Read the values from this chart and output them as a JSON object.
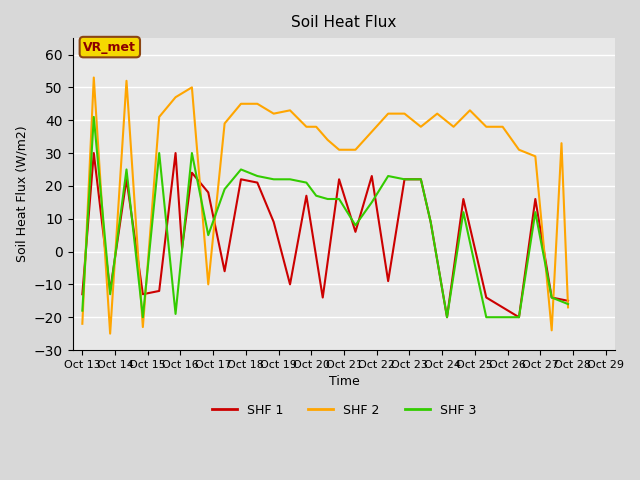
{
  "title": "Soil Heat Flux",
  "xlabel": "Time",
  "ylabel": "Soil Heat Flux (W/m2)",
  "ylim": [
    -30,
    65
  ],
  "yticks": [
    -30,
    -20,
    -10,
    0,
    10,
    20,
    30,
    40,
    50,
    60
  ],
  "fig_bg_color": "#d8d8d8",
  "plot_bg_color": "#e8e8e8",
  "annotation_text": "VR_met",
  "annotation_color": "#8B0000",
  "annotation_bg": "#f5d800",
  "annotation_edge": "#8B4513",
  "line_colors": {
    "SHF 1": "#cc0000",
    "SHF 2": "#ffa500",
    "SHF 3": "#33cc00"
  },
  "xtick_positions": [
    0,
    1,
    2,
    3,
    4,
    5,
    6,
    7,
    8,
    9,
    10,
    11,
    12,
    13,
    14,
    15,
    16
  ],
  "xtick_labels": [
    "Oct 13",
    "Oct 14",
    "Oct 15",
    "Oct 16",
    "Oct 17",
    "Oct 18",
    "Oct 19",
    "Oct 20",
    "Oct 21",
    "Oct 22",
    "Oct 23",
    "Oct 24",
    "Oct 25",
    "Oct 26",
    "Oct 27",
    "Oct 28",
    "Oct 29"
  ],
  "xlim": [
    -0.3,
    16.3
  ],
  "shf1_x": [
    0.0,
    0.35,
    0.85,
    1.35,
    1.85,
    2.35,
    2.85,
    3.05,
    3.35,
    3.85,
    4.35,
    4.85,
    5.35,
    5.85,
    6.35,
    6.85,
    7.35,
    7.85,
    8.35,
    8.85,
    9.35,
    9.85,
    10.35,
    10.65,
    11.15,
    11.65,
    12.35,
    13.35,
    13.85,
    14.35,
    14.85
  ],
  "shf1_y": [
    -13,
    30,
    -12,
    22,
    -13,
    -12,
    30,
    1,
    24,
    18,
    -6,
    22,
    21,
    9,
    -10,
    17,
    -14,
    22,
    6,
    23,
    -9,
    22,
    22,
    9,
    -20,
    16,
    -14,
    -20,
    16,
    -14,
    -15
  ],
  "shf2_x": [
    0.0,
    0.35,
    0.85,
    1.35,
    1.85,
    2.35,
    2.85,
    3.35,
    3.85,
    4.35,
    4.85,
    5.35,
    5.85,
    6.35,
    6.85,
    7.15,
    7.5,
    7.85,
    8.35,
    9.35,
    9.85,
    10.35,
    10.85,
    11.35,
    11.85,
    12.35,
    12.85,
    13.35,
    13.85,
    14.35,
    14.65,
    14.85
  ],
  "shf2_y": [
    -22,
    53,
    -25,
    52,
    -23,
    41,
    47,
    50,
    -10,
    39,
    45,
    45,
    42,
    43,
    38,
    38,
    34,
    31,
    31,
    42,
    42,
    38,
    42,
    38,
    43,
    38,
    38,
    31,
    29,
    -24,
    33,
    -17
  ],
  "shf3_x": [
    0.0,
    0.35,
    0.85,
    1.35,
    1.85,
    2.35,
    2.85,
    3.35,
    3.85,
    4.35,
    4.85,
    5.35,
    5.85,
    6.35,
    6.85,
    7.15,
    7.5,
    7.85,
    8.35,
    8.85,
    9.35,
    9.85,
    10.35,
    10.65,
    11.15,
    11.65,
    12.35,
    13.35,
    13.85,
    14.35,
    14.85
  ],
  "shf3_y": [
    -18,
    41,
    -13,
    25,
    -20,
    30,
    -19,
    30,
    5,
    19,
    25,
    23,
    22,
    22,
    21,
    17,
    16,
    16,
    8,
    15,
    23,
    22,
    22,
    9,
    -20,
    12,
    -20,
    -20,
    12,
    -14,
    -16
  ],
  "line_width": 1.5,
  "grid_color": "white",
  "grid_lw": 1.0
}
